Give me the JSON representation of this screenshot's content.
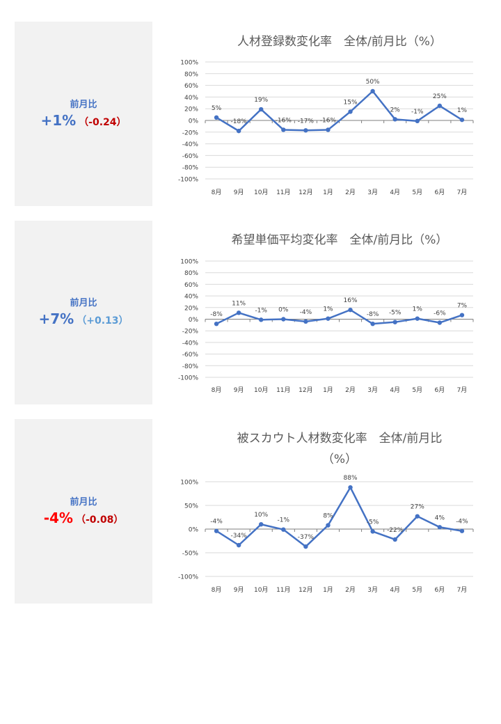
{
  "panels": [
    {
      "kpi": {
        "label": "前月比",
        "value": "+1%",
        "value_color": "#4472c4",
        "diff": "（-0.24）",
        "diff_color": "#c00000"
      },
      "chart_data": {
        "type": "line",
        "title": [
          "人材登録数変化率　全体/前月比（%）"
        ],
        "categories": [
          "8月",
          "9月",
          "10月",
          "11月",
          "12月",
          "1月",
          "2月",
          "3月",
          "4月",
          "5月",
          "6月",
          "7月"
        ],
        "series": [
          {
            "values": [
              5,
              -18,
              19,
              -16,
              -17,
              -16,
              15,
              50,
              2,
              -1,
              25,
              1
            ]
          }
        ],
        "data_labels": [
          "5%",
          "-18%",
          "19%",
          "-16%",
          "-17%",
          "-16%",
          "15%",
          "50%",
          "2%",
          "-1%",
          "25%",
          "1%"
        ],
        "yticks": [
          100,
          80,
          60,
          40,
          20,
          0,
          -20,
          -40,
          -60,
          -80,
          -100
        ],
        "ytick_labels": [
          "100%",
          "80%",
          "60%",
          "40%",
          "20%",
          "0%",
          "-20%",
          "-40%",
          "-60%",
          "-80%",
          "-100%"
        ],
        "ylim": [
          -100,
          100
        ],
        "line_color": "#4472c4",
        "grid": true
      }
    },
    {
      "kpi": {
        "label": "前月比",
        "value": "+7%",
        "value_color": "#4472c4",
        "diff": "（+0.13）",
        "diff_color": "#5b9bd5"
      },
      "chart_data": {
        "type": "line",
        "title": [
          "希望単価平均変化率　全体/前月比（%）"
        ],
        "categories": [
          "8月",
          "9月",
          "10月",
          "11月",
          "12月",
          "1月",
          "2月",
          "3月",
          "4月",
          "5月",
          "6月",
          "7月"
        ],
        "series": [
          {
            "values": [
              -8,
              11,
              -1,
              0,
              -4,
              1,
              16,
              -8,
              -5,
              1,
              -6,
              7
            ]
          }
        ],
        "data_labels": [
          "-8%",
          "11%",
          "-1%",
          "0%",
          "-4%",
          "1%",
          "16%",
          "-8%",
          "-5%",
          "1%",
          "-6%",
          "7%"
        ],
        "yticks": [
          100,
          80,
          60,
          40,
          20,
          0,
          -20,
          -40,
          -60,
          -80,
          -100
        ],
        "ytick_labels": [
          "100%",
          "80%",
          "60%",
          "40%",
          "20%",
          "0%",
          "-20%",
          "-40%",
          "-60%",
          "-80%",
          "-100%"
        ],
        "ylim": [
          -100,
          100
        ],
        "line_color": "#4472c4",
        "grid": true
      }
    },
    {
      "kpi": {
        "label": "前月比",
        "value": "-4%",
        "value_color": "#ff0000",
        "diff": "（-0.08）",
        "diff_color": "#c00000"
      },
      "chart_data": {
        "type": "line",
        "title": [
          "被スカウト人材数変化率　全体/前月比",
          "（%）"
        ],
        "categories": [
          "8月",
          "9月",
          "10月",
          "11月",
          "12月",
          "1月",
          "2月",
          "3月",
          "4月",
          "5月",
          "6月",
          "7月"
        ],
        "series": [
          {
            "values": [
              -4,
              -34,
              10,
              -1,
              -37,
              8,
              88,
              -5,
              -22,
              27,
              4,
              -4
            ]
          }
        ],
        "data_labels": [
          "-4%",
          "-34%",
          "10%",
          "-1%",
          "-37%",
          "8%",
          "88%",
          "-5%",
          "-22%",
          "27%",
          "4%",
          "-4%"
        ],
        "yticks": [
          100,
          50,
          0,
          -50,
          -100
        ],
        "ytick_labels": [
          "100%",
          "50%",
          "0%",
          "-50%",
          "-100%"
        ],
        "ylim": [
          -100,
          100
        ],
        "line_color": "#4472c4",
        "grid": true
      }
    }
  ]
}
